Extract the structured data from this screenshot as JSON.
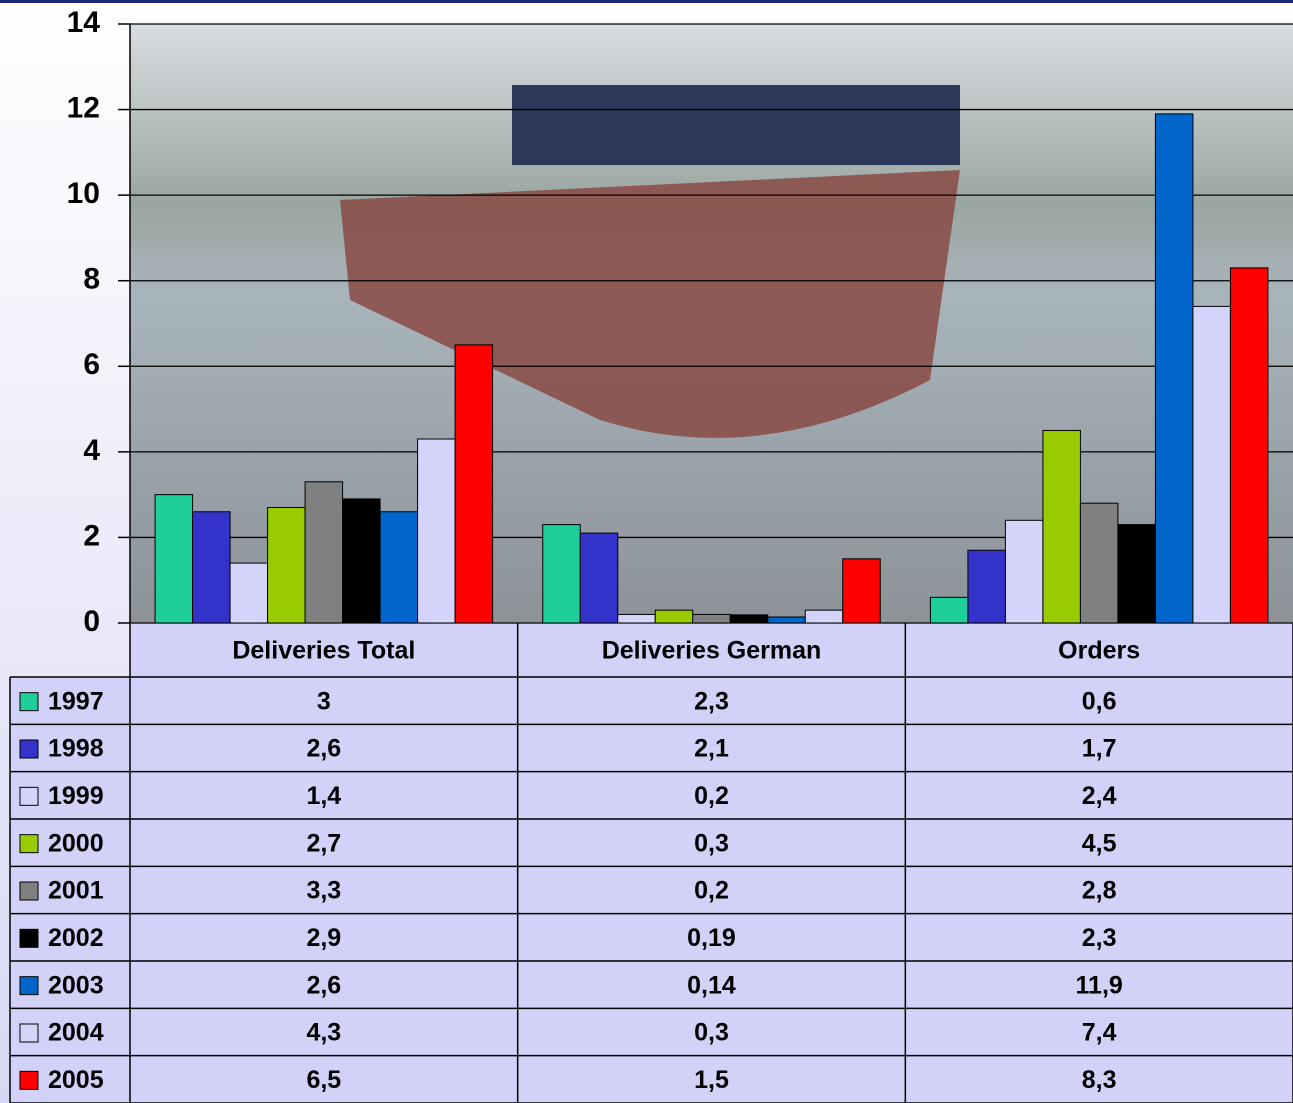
{
  "chart_data": {
    "type": "bar",
    "categories": [
      "Deliveries Total",
      "Deliveries German",
      "Orders"
    ],
    "series": [
      {
        "name": "1997",
        "color": "#1ecf9a",
        "values": [
          3,
          2.3,
          0.6
        ],
        "value_labels": [
          "3",
          "2,3",
          "0,6"
        ]
      },
      {
        "name": "1998",
        "color": "#3333cc",
        "values": [
          2.6,
          2.1,
          1.7
        ],
        "value_labels": [
          "2,6",
          "2,1",
          "1,7"
        ]
      },
      {
        "name": "1999",
        "color": "#d4d4fa",
        "values": [
          1.4,
          0.2,
          2.4
        ],
        "value_labels": [
          "1,4",
          "0,2",
          "2,4"
        ]
      },
      {
        "name": "2000",
        "color": "#99cc00",
        "values": [
          2.7,
          0.3,
          4.5
        ],
        "value_labels": [
          "2,7",
          "0,3",
          "4,5"
        ]
      },
      {
        "name": "2001",
        "color": "#808080",
        "values": [
          3.3,
          0.2,
          2.8
        ],
        "value_labels": [
          "3,3",
          "0,2",
          "2,8"
        ]
      },
      {
        "name": "2002",
        "color": "#000000",
        "values": [
          2.9,
          0.19,
          2.3
        ],
        "value_labels": [
          "2,9",
          "0,19",
          "2,3"
        ]
      },
      {
        "name": "2003",
        "color": "#0066cc",
        "values": [
          2.6,
          0.14,
          11.9
        ],
        "value_labels": [
          "2,6",
          "0,14",
          "11,9"
        ]
      },
      {
        "name": "2004",
        "color": "#d4d4fa",
        "values": [
          4.3,
          0.3,
          7.4
        ],
        "value_labels": [
          "4,3",
          "0,3",
          "7,4"
        ]
      },
      {
        "name": "2005",
        "color": "#ff0000",
        "values": [
          6.5,
          1.5,
          8.3
        ],
        "value_labels": [
          "6,5",
          "1,5",
          "8,3"
        ]
      }
    ],
    "ylim": [
      0,
      14
    ],
    "yticks": [
      0,
      2,
      4,
      6,
      8,
      10,
      12,
      14
    ],
    "grid": true
  }
}
